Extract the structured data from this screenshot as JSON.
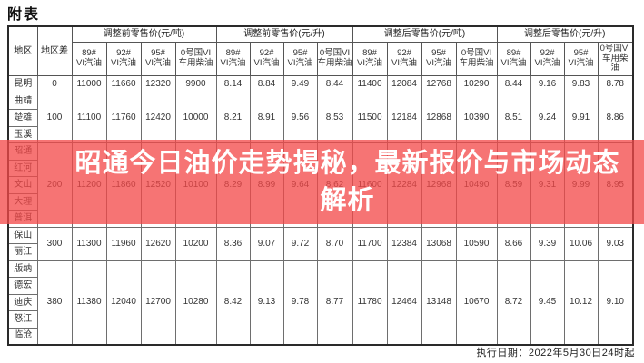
{
  "page": {
    "title": "附表",
    "background_color": "#ffffff"
  },
  "banner": {
    "line1": "昭通今日油价走势揭秘，最新报价与市场动态",
    "line2": "解析",
    "bg_color": "#f34848",
    "text_color": "#ffffff"
  },
  "footer": {
    "execution_date": "执行日期：2022年5月30日24时起"
  },
  "table": {
    "corner_headers": {
      "region": "地区",
      "diff": "地区差"
    },
    "group_headers": [
      "调整前零售价(元/吨)",
      "调整前零售价(元/升)",
      "调整后零售价(元/吨)",
      "调整后零售价(元/升)"
    ],
    "col_headers": [
      "89#\nVI汽油",
      "92#\nVI汽油",
      "95#\nVI汽油",
      "0号国VI\n车用柴油"
    ],
    "row_groups": [
      {
        "regions": [
          "昆明"
        ],
        "diff": "0",
        "values": [
          "11000",
          "11660",
          "12320",
          "9900",
          "8.14",
          "8.84",
          "9.49",
          "8.44",
          "11400",
          "12084",
          "12768",
          "10290",
          "8.44",
          "9.16",
          "9.83",
          "8.78"
        ]
      },
      {
        "regions": [
          "曲靖",
          "楚雄",
          "玉溪"
        ],
        "diff": "100",
        "values": [
          "11100",
          "11760",
          "12420",
          "10000",
          "8.21",
          "8.91",
          "9.56",
          "8.53",
          "11500",
          "12184",
          "12868",
          "10390",
          "8.51",
          "9.24",
          "9.91",
          "8.86"
        ]
      },
      {
        "regions": [
          "昭通",
          "红河",
          "文山",
          "大理",
          "普洱"
        ],
        "diff": "200",
        "values": [
          "11200",
          "11860",
          "12520",
          "10100",
          "8.29",
          "8.99",
          "9.64",
          "8.62",
          "11600",
          "12284",
          "12968",
          "10490",
          "8.59",
          "9.31",
          "9.99",
          "8.95"
        ]
      },
      {
        "regions": [
          "保山",
          "丽江"
        ],
        "diff": "300",
        "values": [
          "11300",
          "11960",
          "12620",
          "10200",
          "8.36",
          "9.07",
          "9.72",
          "8.70",
          "11700",
          "12384",
          "13068",
          "10590",
          "8.66",
          "9.39",
          "10.06",
          "9.03"
        ]
      },
      {
        "regions": [
          "版纳",
          "德宏",
          "迪庆",
          "怒江",
          "临沧"
        ],
        "diff": "380",
        "values": [
          "11380",
          "12040",
          "12700",
          "10280",
          "8.42",
          "9.13",
          "9.78",
          "8.77",
          "11780",
          "12464",
          "13148",
          "10670",
          "8.72",
          "9.45",
          "10.12",
          "9.10"
        ]
      }
    ]
  }
}
